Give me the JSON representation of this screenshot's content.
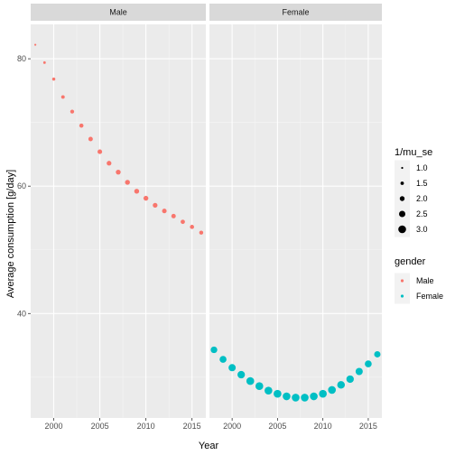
{
  "chart_data": {
    "type": "scatter",
    "facets": [
      "Male",
      "Female"
    ],
    "xlabel": "Year",
    "ylabel": "Average consumption [g/day]",
    "xlim": [
      1997.5,
      2016.5
    ],
    "ylim": [
      23.6,
      85.4
    ],
    "x_ticks": [
      2000,
      2005,
      2010,
      2015
    ],
    "x_tick_labels": [
      "2000",
      "2005",
      "2010",
      "2015"
    ],
    "y_ticks": [
      40,
      60,
      80
    ],
    "y_tick_labels": [
      "40",
      "60",
      "80"
    ],
    "grid": true,
    "series": [
      {
        "name": "Male",
        "color": "#F8766D",
        "facet": "Male",
        "x": [
          1998,
          1999,
          2000,
          2001,
          2002,
          2003,
          2004,
          2005,
          2006,
          2007,
          2008,
          2009,
          2010,
          2011,
          2012,
          2013,
          2014,
          2015,
          2016
        ],
        "y": [
          82.2,
          79.4,
          76.8,
          74.0,
          71.7,
          69.5,
          67.4,
          65.4,
          63.6,
          62.2,
          60.6,
          59.2,
          58.1,
          57.0,
          56.1,
          55.3,
          54.4,
          53.6,
          52.7
        ],
        "size": [
          1.0,
          1.2,
          1.4,
          1.55,
          1.65,
          1.75,
          1.85,
          1.9,
          1.95,
          2.0,
          2.0,
          2.0,
          2.0,
          1.95,
          1.9,
          1.85,
          1.8,
          1.75,
          1.7
        ]
      },
      {
        "name": "Female",
        "color": "#00BFC4",
        "facet": "Female",
        "x": [
          1998,
          1999,
          2000,
          2001,
          2002,
          2003,
          2004,
          2005,
          2006,
          2007,
          2008,
          2009,
          2010,
          2011,
          2012,
          2013,
          2014,
          2015,
          2016
        ],
        "y": [
          34.3,
          32.8,
          31.5,
          30.4,
          29.4,
          28.6,
          27.9,
          27.4,
          27.0,
          26.8,
          26.8,
          27.0,
          27.4,
          28.0,
          28.8,
          29.7,
          30.9,
          32.1,
          33.6
        ],
        "size": [
          2.6,
          2.7,
          2.8,
          2.9,
          3.0,
          3.0,
          3.0,
          3.0,
          3.0,
          3.0,
          3.0,
          3.0,
          3.0,
          3.0,
          2.95,
          2.9,
          2.8,
          2.7,
          2.5
        ]
      }
    ],
    "legend": {
      "placement": "right",
      "size": {
        "title": "1/mu_se",
        "values": [
          1.0,
          1.5,
          2.0,
          2.5,
          3.0
        ],
        "labels": [
          "1.0",
          "1.5",
          "2.0",
          "2.5",
          "3.0"
        ]
      },
      "color": {
        "title": "gender",
        "entries": [
          {
            "label": "Male",
            "color": "#F8766D"
          },
          {
            "label": "Female",
            "color": "#00BFC4"
          }
        ]
      }
    }
  }
}
